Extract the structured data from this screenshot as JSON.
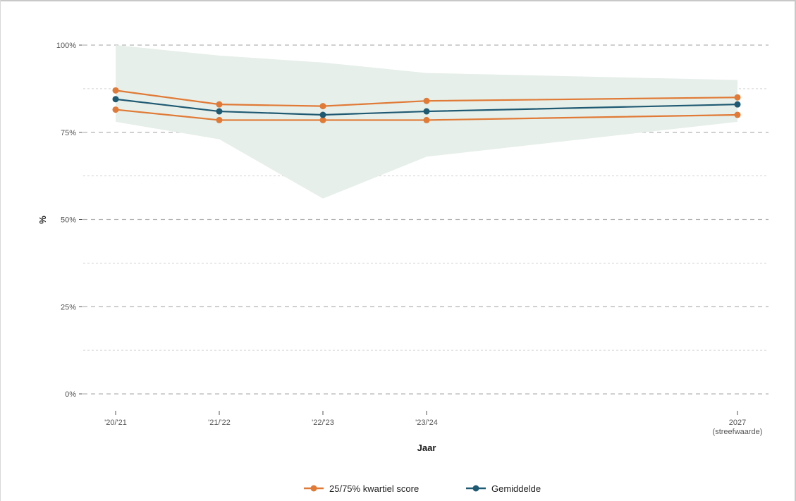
{
  "chart_data": {
    "type": "line",
    "title": "",
    "xlabel": "Jaar",
    "ylabel": "%",
    "categories": [
      "'20/'21",
      "'21/'22",
      "'22/'23",
      "'23/'24",
      "2027"
    ],
    "category_sublabels": [
      "",
      "",
      "",
      "",
      "(streefwaarde)"
    ],
    "yticks": [
      "0%",
      "25%",
      "50%",
      "75%",
      "100%"
    ],
    "ytick_values": [
      0,
      25,
      50,
      75,
      100
    ],
    "ylim": [
      0,
      100
    ],
    "grid": true,
    "legend_position": "bottom",
    "band": {
      "upper": [
        100,
        97,
        95,
        92,
        90
      ],
      "lower": [
        78,
        73,
        56,
        68,
        78
      ]
    },
    "series": [
      {
        "name": "25/75% kwartiel score",
        "role": "upper",
        "values": [
          87,
          83,
          82.5,
          84,
          85
        ]
      },
      {
        "name": "25/75% kwartiel score",
        "role": "lower",
        "values": [
          81.5,
          78.5,
          78.5,
          78.5,
          80
        ]
      },
      {
        "name": "Gemiddelde",
        "role": "mean",
        "values": [
          84.5,
          81,
          80,
          81,
          83
        ]
      }
    ],
    "legend": [
      "25/75% kwartiel score",
      "Gemiddelde"
    ],
    "colors": {
      "quartile": "#e07a36",
      "mean": "#1f5a73",
      "band": "#e6efe9",
      "grid": "#bfbfbf"
    }
  }
}
